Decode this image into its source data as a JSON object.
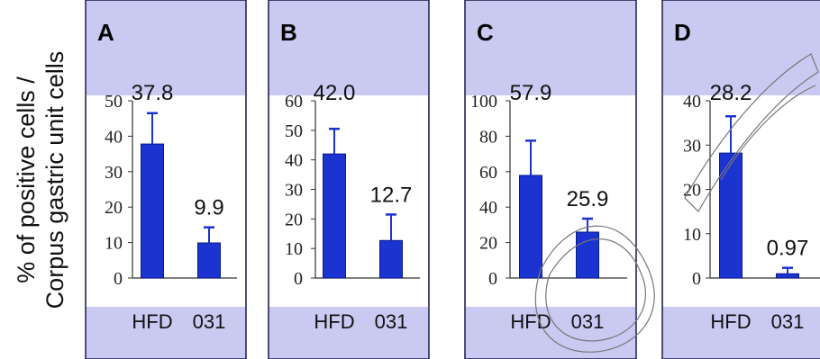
{
  "ylabel": {
    "line1": "% of positive cells /",
    "line2": "Corpus gastric unit cells"
  },
  "colors": {
    "panel_background": "#c9c9f2",
    "plot_background": "#ffffff",
    "bar_fill": "#1a33d1",
    "bar_stroke": "#0a1a8a",
    "error_bar": "#1a33d1",
    "panel_border": "#1a1a4a"
  },
  "chart_data": [
    {
      "type": "bar",
      "panel": "A",
      "categories": [
        "HFD",
        "031"
      ],
      "values": [
        37.8,
        9.9
      ],
      "value_labels": [
        "37.8",
        "9.9"
      ],
      "error_upper": [
        46.5,
        14.3
      ],
      "ylim": [
        0,
        50
      ],
      "yticks": [
        "0",
        "10",
        "20",
        "30",
        "40",
        "50"
      ],
      "xlabel": "",
      "ylabel": "",
      "grid": false
    },
    {
      "type": "bar",
      "panel": "B",
      "categories": [
        "HFD",
        "031"
      ],
      "values": [
        42.0,
        12.7
      ],
      "value_labels": [
        "42.0",
        "12.7"
      ],
      "error_upper": [
        50.5,
        21.5
      ],
      "ylim": [
        0,
        60
      ],
      "yticks": [
        "0",
        "10",
        "20",
        "30",
        "40",
        "50",
        "60"
      ],
      "xlabel": "",
      "ylabel": "",
      "grid": false
    },
    {
      "type": "bar",
      "panel": "C",
      "categories": [
        "HFD",
        "031"
      ],
      "values": [
        57.9,
        25.9
      ],
      "value_labels": [
        "57.9",
        "25.9"
      ],
      "error_upper": [
        77.5,
        33.5
      ],
      "ylim": [
        0,
        100
      ],
      "yticks": [
        "0",
        "20",
        "40",
        "60",
        "80",
        "100"
      ],
      "xlabel": "",
      "ylabel": "",
      "grid": false
    },
    {
      "type": "bar",
      "panel": "D",
      "categories": [
        "HFD",
        "031"
      ],
      "values": [
        28.2,
        0.97
      ],
      "value_labels": [
        "28.2",
        "0.97"
      ],
      "error_upper": [
        36.5,
        2.3
      ],
      "ylim": [
        0,
        40
      ],
      "yticks": [
        "0",
        "10",
        "20",
        "30",
        "40"
      ],
      "xlabel": "",
      "ylabel": "",
      "grid": false
    }
  ]
}
